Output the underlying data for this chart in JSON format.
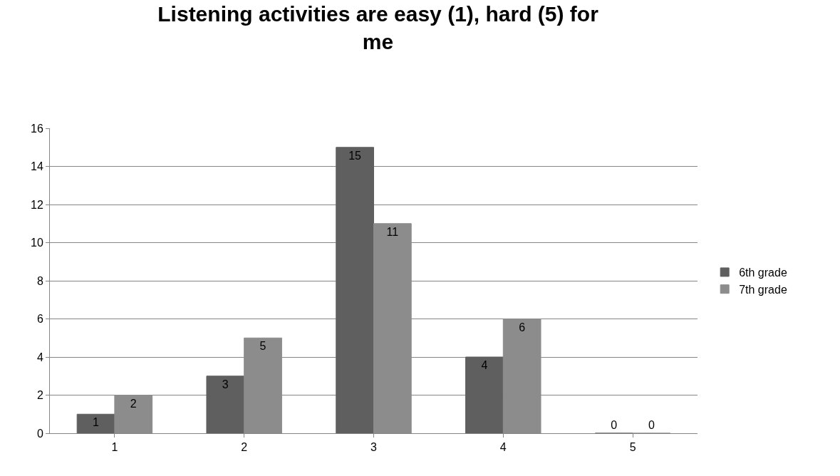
{
  "chart_data": {
    "type": "bar",
    "title": "Listening activities are easy (1), hard (5) for me",
    "categories": [
      "1",
      "2",
      "3",
      "4",
      "5"
    ],
    "series": [
      {
        "name": "6th grade",
        "color": "#5f5f5f",
        "values": [
          1,
          3,
          15,
          4,
          0
        ]
      },
      {
        "name": "7th grade",
        "color": "#8c8c8c",
        "values": [
          2,
          5,
          11,
          6,
          0
        ]
      }
    ],
    "ylim": [
      0,
      16
    ],
    "yticks": [
      0,
      2,
      4,
      6,
      8,
      10,
      12,
      14,
      16
    ],
    "grid": "y",
    "legend": "right",
    "data_labels": true
  }
}
